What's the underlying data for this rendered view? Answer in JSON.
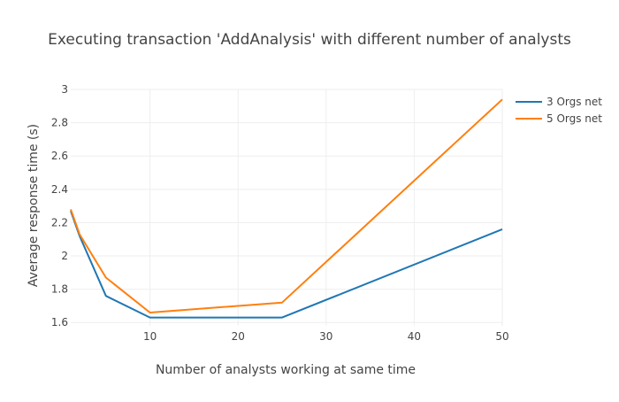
{
  "chart_data": {
    "type": "line",
    "title": "Executing transaction 'AddAnalysis' with different number of analysts",
    "xlabel": "Number of analysts working at same time",
    "ylabel": "Average response time (s)",
    "xlim": [
      1,
      50
    ],
    "ylim": [
      1.58,
      3.0
    ],
    "x_ticks": [
      10,
      20,
      30,
      40,
      50
    ],
    "y_ticks": [
      1.6,
      1.8,
      2,
      2.2,
      2.4,
      2.6,
      2.8,
      3
    ],
    "grid": true,
    "legend_position": "top-right",
    "series": [
      {
        "name": "3 Orgs net",
        "color": "#1f77b4",
        "x": [
          1,
          2,
          5,
          10,
          25,
          50
        ],
        "y": [
          2.27,
          2.12,
          1.76,
          1.63,
          1.63,
          2.16
        ]
      },
      {
        "name": "5 Orgs net",
        "color": "#ff7f0e",
        "x": [
          1,
          2,
          5,
          10,
          25,
          50
        ],
        "y": [
          2.28,
          2.13,
          1.87,
          1.66,
          1.72,
          2.94
        ]
      }
    ]
  }
}
